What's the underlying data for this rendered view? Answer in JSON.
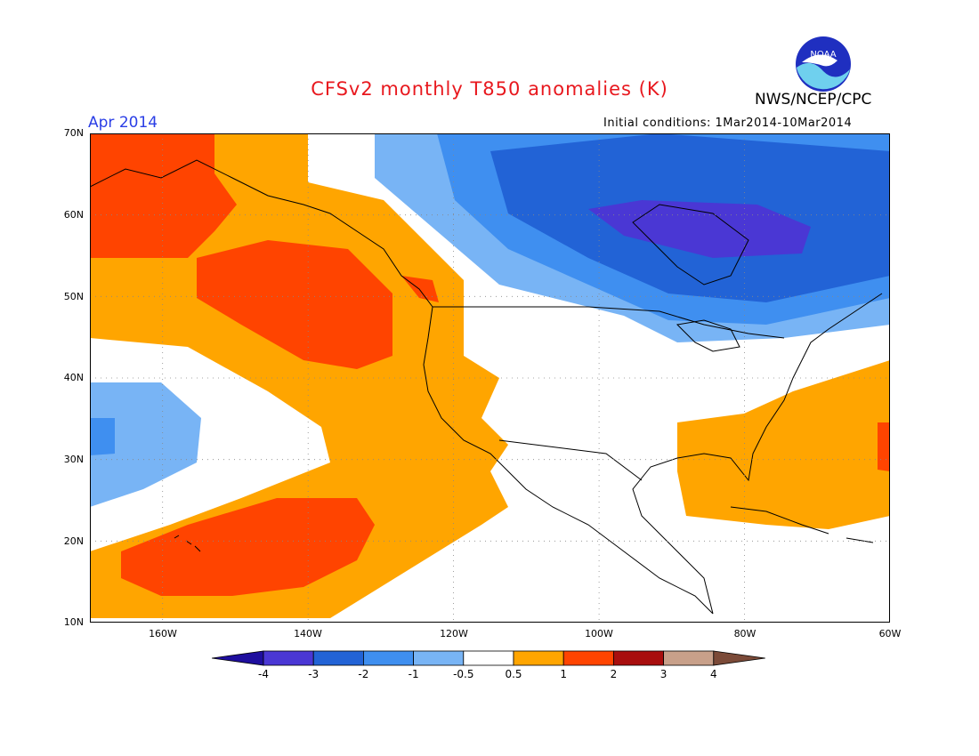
{
  "header": {
    "title": "CFSv2 monthly T850 anomalies (K)",
    "month": "Apr 2014",
    "agency": "NWS/NCEP/CPC",
    "initial_conditions": "Initial conditions: 1Mar2014-10Mar2014",
    "logo_text": "NOAA"
  },
  "map": {
    "lat_labels": [
      "70N",
      "60N",
      "50N",
      "40N",
      "30N",
      "20N",
      "10N"
    ],
    "lon_labels": [
      "160W",
      "140W",
      "120W",
      "100W",
      "80W",
      "60W"
    ],
    "grid": true
  },
  "colorbar": {
    "labels": [
      "-4",
      "-3",
      "-2",
      "-1",
      "-0.5",
      "0.5",
      "1",
      "2",
      "3",
      "4"
    ],
    "colors": [
      "#1e0e9e",
      "#4a37d4",
      "#2263d6",
      "#3f8ff0",
      "#78b4f5",
      "#ffffff",
      "#ffa500",
      "#ff4400",
      "#a80e0e",
      "#c8a08a",
      "#7b4a38"
    ]
  }
}
